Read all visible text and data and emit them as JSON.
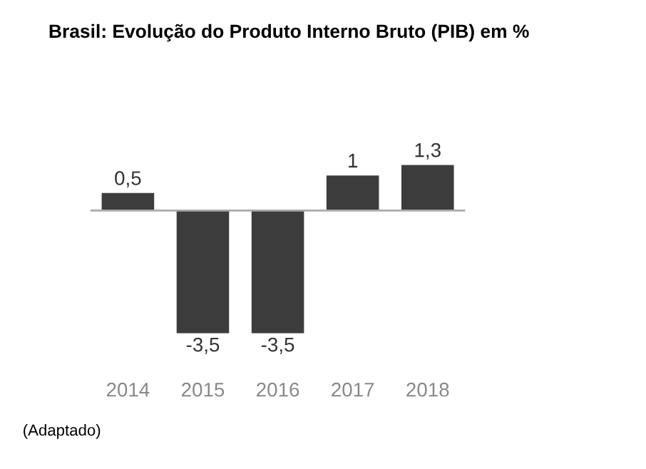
{
  "chart_data": {
    "type": "bar",
    "title": "Brasil: Evolução do Produto Interno Bruto (PIB) em %",
    "categories": [
      "2014",
      "2015",
      "2016",
      "2017",
      "2018"
    ],
    "values": [
      0.5,
      -3.5,
      -3.5,
      1,
      1.3
    ],
    "value_labels": [
      "0,5",
      "-3,5",
      "-3,5",
      "1",
      "1,3"
    ],
    "color": "#3c3c3c",
    "tick_labels": "x",
    "annotations": [
      "(Adaptado)"
    ]
  }
}
